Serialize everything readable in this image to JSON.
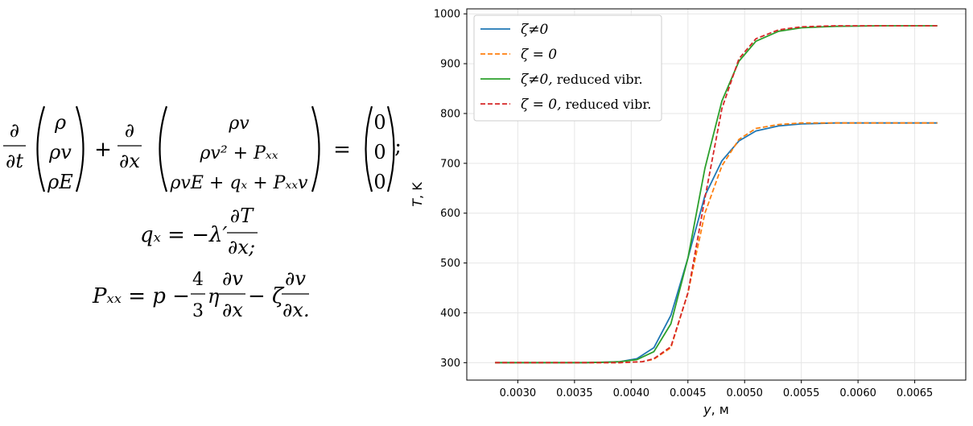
{
  "equations": {
    "d": "∂",
    "dt": "∂t",
    "dx": "∂x",
    "plus": "+",
    "equals": "=",
    "vec_left": [
      "ρ",
      "ρv",
      "ρE"
    ],
    "vec_right": [
      "ρv",
      "ρv² + Pₓₓ",
      "ρvE + qₓ + Pₓₓv"
    ],
    "vec_zero": [
      "0",
      "0",
      "0"
    ],
    "semicolon": ";",
    "qx_lhs": "qₓ = −λ′",
    "dT": "∂T",
    "dx_semicolon": "∂x;",
    "pxx_lhs": "Pₓₓ = p −",
    "four": "4",
    "three": "3",
    "eta": "η",
    "dv": "∂v",
    "minus_zeta": "− ζ",
    "dx_period": "∂x."
  },
  "colors": {
    "blue": "#1f77b4",
    "orange": "#ff7f0e",
    "green": "#2ca02c",
    "red": "#d62728",
    "grid": "#e6e6e6"
  },
  "chart_data": {
    "type": "line",
    "xlabel": "y, м",
    "ylabel": "T, K",
    "xlim": [
      0.00255,
      0.00695
    ],
    "ylim": [
      265,
      1010
    ],
    "xticks": [
      "0.0030",
      "0.0035",
      "0.0040",
      "0.0045",
      "0.0050",
      "0.0055",
      "0.0060",
      "0.0065"
    ],
    "xtick_values": [
      0.003,
      0.0035,
      0.004,
      0.0045,
      0.005,
      0.0055,
      0.006,
      0.0065
    ],
    "yticks": [
      "300",
      "400",
      "500",
      "600",
      "700",
      "800",
      "900",
      "1000"
    ],
    "ytick_values": [
      300,
      400,
      500,
      600,
      700,
      800,
      900,
      1000
    ],
    "grid": true,
    "legend_position": "top-left",
    "series": [
      {
        "name": "ζ≠0",
        "name_main": "ζ≠0",
        "name_suffix": "",
        "color": "#1f77b4",
        "dash": "solid",
        "x": [
          0.0028,
          0.0032,
          0.0036,
          0.0038,
          0.0039,
          0.00405,
          0.0042,
          0.00435,
          0.0045,
          0.00465,
          0.0048,
          0.00495,
          0.0051,
          0.0053,
          0.0055,
          0.0058,
          0.0062,
          0.0067
        ],
        "y": [
          300,
          300,
          300,
          301,
          302,
          308,
          330,
          395,
          510,
          635,
          705,
          745,
          765,
          775,
          779,
          781,
          781,
          781
        ]
      },
      {
        "name": "ζ = 0",
        "name_main": "ζ = 0",
        "name_suffix": "",
        "color": "#ff7f0e",
        "dash": "dashed",
        "x": [
          0.0028,
          0.0032,
          0.0036,
          0.0039,
          0.0041,
          0.0042,
          0.00435,
          0.0045,
          0.00465,
          0.0048,
          0.00495,
          0.0051,
          0.0053,
          0.0055,
          0.0058,
          0.0062,
          0.0067
        ],
        "y": [
          300,
          300,
          300,
          300,
          302,
          307,
          330,
          440,
          600,
          695,
          748,
          770,
          778,
          781,
          781,
          781,
          781
        ]
      },
      {
        "name": "ζ≠0, reduced vibr.",
        "name_main": "ζ≠0,",
        "name_suffix": " reduced vibr.",
        "color": "#2ca02c",
        "dash": "solid",
        "x": [
          0.0028,
          0.0032,
          0.0036,
          0.0038,
          0.0039,
          0.00405,
          0.0042,
          0.00435,
          0.0045,
          0.00465,
          0.0048,
          0.00495,
          0.0051,
          0.0053,
          0.0055,
          0.0058,
          0.0062,
          0.0067
        ],
        "y": [
          300,
          300,
          300,
          301,
          302,
          306,
          322,
          378,
          510,
          690,
          825,
          905,
          945,
          965,
          972,
          975,
          976,
          976
        ]
      },
      {
        "name": "ζ = 0, reduced vibr.",
        "name_main": "ζ = 0,",
        "name_suffix": " reduced vibr.",
        "color": "#d62728",
        "dash": "dashed",
        "x": [
          0.0028,
          0.0032,
          0.0036,
          0.0039,
          0.0041,
          0.0042,
          0.00435,
          0.0045,
          0.00465,
          0.0048,
          0.00495,
          0.0051,
          0.0053,
          0.0055,
          0.0058,
          0.0062,
          0.0067
        ],
        "y": [
          300,
          300,
          300,
          300,
          302,
          308,
          332,
          440,
          630,
          810,
          910,
          950,
          968,
          974,
          976,
          976,
          976
        ]
      }
    ]
  }
}
